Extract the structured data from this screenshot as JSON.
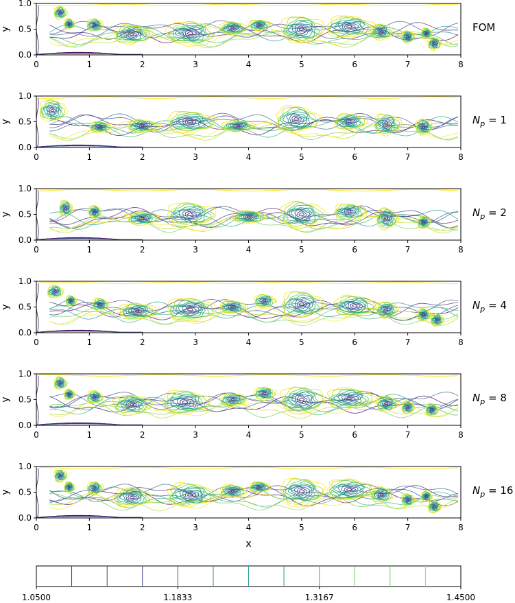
{
  "chart_data": [
    {
      "type": "contour",
      "label": "FOM",
      "xlabel": "",
      "ylabel": "y",
      "xlim": [
        0,
        8
      ],
      "ylim": [
        0,
        1
      ],
      "xticks": [
        "0",
        "1",
        "2",
        "3",
        "4",
        "5",
        "6",
        "7",
        "8"
      ],
      "yticks": [
        "0.0",
        "0.5",
        "1.0"
      ],
      "vortices": [
        {
          "x": 0.45,
          "y": 0.82,
          "r": 0.12,
          "ry": 0.12
        },
        {
          "x": 0.62,
          "y": 0.6,
          "r": 0.1,
          "ry": 0.1
        },
        {
          "x": 1.1,
          "y": 0.58,
          "r": 0.15,
          "ry": 0.12
        },
        {
          "x": 1.8,
          "y": 0.4,
          "r": 0.35,
          "ry": 0.18
        },
        {
          "x": 2.9,
          "y": 0.42,
          "r": 0.45,
          "ry": 0.22
        },
        {
          "x": 3.7,
          "y": 0.52,
          "r": 0.25,
          "ry": 0.12
        },
        {
          "x": 4.2,
          "y": 0.58,
          "r": 0.2,
          "ry": 0.1
        },
        {
          "x": 5.0,
          "y": 0.5,
          "r": 0.4,
          "ry": 0.25
        },
        {
          "x": 5.9,
          "y": 0.55,
          "r": 0.45,
          "ry": 0.2
        },
        {
          "x": 6.5,
          "y": 0.45,
          "r": 0.2,
          "ry": 0.15
        },
        {
          "x": 7.0,
          "y": 0.35,
          "r": 0.12,
          "ry": 0.12
        },
        {
          "x": 7.35,
          "y": 0.42,
          "r": 0.1,
          "ry": 0.1
        },
        {
          "x": 7.5,
          "y": 0.22,
          "r": 0.12,
          "ry": 0.12
        }
      ]
    },
    {
      "type": "contour",
      "label": "N_p = 1",
      "xlabel": "",
      "ylabel": "y",
      "xlim": [
        0,
        8
      ],
      "ylim": [
        0,
        1
      ],
      "xticks": [
        "0",
        "1",
        "2",
        "3",
        "4",
        "5",
        "6",
        "7",
        "8"
      ],
      "yticks": [
        "0.0",
        "0.5",
        "1.0"
      ],
      "vortices": [
        {
          "x": 0.3,
          "y": 0.72,
          "r": 0.25,
          "ry": 0.2
        },
        {
          "x": 1.2,
          "y": 0.4,
          "r": 0.2,
          "ry": 0.1
        },
        {
          "x": 2.0,
          "y": 0.42,
          "r": 0.3,
          "ry": 0.12
        },
        {
          "x": 2.9,
          "y": 0.5,
          "r": 0.45,
          "ry": 0.2
        },
        {
          "x": 3.8,
          "y": 0.42,
          "r": 0.3,
          "ry": 0.1
        },
        {
          "x": 4.9,
          "y": 0.55,
          "r": 0.4,
          "ry": 0.25
        },
        {
          "x": 5.9,
          "y": 0.5,
          "r": 0.3,
          "ry": 0.15
        },
        {
          "x": 6.6,
          "y": 0.45,
          "r": 0.25,
          "ry": 0.2
        },
        {
          "x": 7.3,
          "y": 0.4,
          "r": 0.15,
          "ry": 0.15
        }
      ]
    },
    {
      "type": "contour",
      "label": "N_p = 2",
      "xlabel": "",
      "ylabel": "y",
      "xlim": [
        0,
        8
      ],
      "ylim": [
        0,
        1
      ],
      "xticks": [
        "0",
        "1",
        "2",
        "3",
        "4",
        "5",
        "6",
        "7",
        "8"
      ],
      "yticks": [
        "0.0",
        "0.5",
        "1.0"
      ],
      "vortices": [
        {
          "x": 0.55,
          "y": 0.62,
          "r": 0.12,
          "ry": 0.15
        },
        {
          "x": 1.1,
          "y": 0.55,
          "r": 0.12,
          "ry": 0.12
        },
        {
          "x": 2.0,
          "y": 0.42,
          "r": 0.3,
          "ry": 0.12
        },
        {
          "x": 2.9,
          "y": 0.5,
          "r": 0.45,
          "ry": 0.22
        },
        {
          "x": 4.0,
          "y": 0.45,
          "r": 0.3,
          "ry": 0.12
        },
        {
          "x": 5.0,
          "y": 0.5,
          "r": 0.4,
          "ry": 0.25
        },
        {
          "x": 5.9,
          "y": 0.55,
          "r": 0.3,
          "ry": 0.15
        },
        {
          "x": 6.6,
          "y": 0.42,
          "r": 0.2,
          "ry": 0.2
        },
        {
          "x": 7.3,
          "y": 0.35,
          "r": 0.12,
          "ry": 0.12
        }
      ]
    },
    {
      "type": "contour",
      "label": "N_p = 4",
      "xlabel": "",
      "ylabel": "y",
      "xlim": [
        0,
        8
      ],
      "ylim": [
        0,
        1
      ],
      "xticks": [
        "0",
        "1",
        "2",
        "3",
        "4",
        "5",
        "6",
        "7",
        "8"
      ],
      "yticks": [
        "0.0",
        "0.5",
        "1.0"
      ],
      "vortices": [
        {
          "x": 0.35,
          "y": 0.8,
          "r": 0.15,
          "ry": 0.12
        },
        {
          "x": 0.65,
          "y": 0.62,
          "r": 0.1,
          "ry": 0.1
        },
        {
          "x": 1.2,
          "y": 0.55,
          "r": 0.15,
          "ry": 0.12
        },
        {
          "x": 1.9,
          "y": 0.42,
          "r": 0.35,
          "ry": 0.15
        },
        {
          "x": 2.9,
          "y": 0.45,
          "r": 0.45,
          "ry": 0.22
        },
        {
          "x": 3.7,
          "y": 0.5,
          "r": 0.25,
          "ry": 0.12
        },
        {
          "x": 4.3,
          "y": 0.62,
          "r": 0.2,
          "ry": 0.12
        },
        {
          "x": 5.0,
          "y": 0.55,
          "r": 0.4,
          "ry": 0.25
        },
        {
          "x": 6.0,
          "y": 0.52,
          "r": 0.4,
          "ry": 0.2
        },
        {
          "x": 6.6,
          "y": 0.45,
          "r": 0.2,
          "ry": 0.15
        },
        {
          "x": 7.3,
          "y": 0.35,
          "r": 0.12,
          "ry": 0.12
        },
        {
          "x": 7.55,
          "y": 0.25,
          "r": 0.12,
          "ry": 0.12
        }
      ]
    },
    {
      "type": "contour",
      "label": "N_p = 8",
      "xlabel": "",
      "ylabel": "y",
      "xlim": [
        0,
        8
      ],
      "ylim": [
        0,
        1
      ],
      "xticks": [
        "0",
        "1",
        "2",
        "3",
        "4",
        "5",
        "6",
        "7",
        "8"
      ],
      "yticks": [
        "0.0",
        "0.5",
        "1.0"
      ],
      "vortices": [
        {
          "x": 0.45,
          "y": 0.82,
          "r": 0.12,
          "ry": 0.12
        },
        {
          "x": 0.62,
          "y": 0.6,
          "r": 0.1,
          "ry": 0.1
        },
        {
          "x": 1.1,
          "y": 0.55,
          "r": 0.15,
          "ry": 0.12
        },
        {
          "x": 1.8,
          "y": 0.4,
          "r": 0.35,
          "ry": 0.18
        },
        {
          "x": 2.8,
          "y": 0.45,
          "r": 0.45,
          "ry": 0.22
        },
        {
          "x": 3.7,
          "y": 0.5,
          "r": 0.25,
          "ry": 0.12
        },
        {
          "x": 4.3,
          "y": 0.62,
          "r": 0.2,
          "ry": 0.12
        },
        {
          "x": 5.0,
          "y": 0.5,
          "r": 0.4,
          "ry": 0.25
        },
        {
          "x": 5.9,
          "y": 0.52,
          "r": 0.45,
          "ry": 0.2
        },
        {
          "x": 6.6,
          "y": 0.42,
          "r": 0.2,
          "ry": 0.15
        },
        {
          "x": 7.0,
          "y": 0.35,
          "r": 0.12,
          "ry": 0.12
        },
        {
          "x": 7.45,
          "y": 0.3,
          "r": 0.12,
          "ry": 0.12
        }
      ]
    },
    {
      "type": "contour",
      "label": "N_p = 16",
      "xlabel": "x",
      "ylabel": "y",
      "xlim": [
        0,
        8
      ],
      "ylim": [
        0,
        1
      ],
      "xticks": [
        "0",
        "1",
        "2",
        "3",
        "4",
        "5",
        "6",
        "7",
        "8"
      ],
      "yticks": [
        "0.0",
        "0.5",
        "1.0"
      ],
      "vortices": [
        {
          "x": 0.45,
          "y": 0.82,
          "r": 0.12,
          "ry": 0.12
        },
        {
          "x": 0.62,
          "y": 0.6,
          "r": 0.1,
          "ry": 0.1
        },
        {
          "x": 1.1,
          "y": 0.58,
          "r": 0.15,
          "ry": 0.12
        },
        {
          "x": 1.8,
          "y": 0.4,
          "r": 0.35,
          "ry": 0.18
        },
        {
          "x": 2.9,
          "y": 0.45,
          "r": 0.45,
          "ry": 0.22
        },
        {
          "x": 3.7,
          "y": 0.52,
          "r": 0.25,
          "ry": 0.12
        },
        {
          "x": 4.2,
          "y": 0.6,
          "r": 0.2,
          "ry": 0.1
        },
        {
          "x": 5.0,
          "y": 0.52,
          "r": 0.4,
          "ry": 0.25
        },
        {
          "x": 5.9,
          "y": 0.55,
          "r": 0.45,
          "ry": 0.2
        },
        {
          "x": 6.5,
          "y": 0.45,
          "r": 0.2,
          "ry": 0.15
        },
        {
          "x": 7.0,
          "y": 0.35,
          "r": 0.12,
          "ry": 0.12
        },
        {
          "x": 7.35,
          "y": 0.42,
          "r": 0.1,
          "ry": 0.1
        },
        {
          "x": 7.5,
          "y": 0.22,
          "r": 0.12,
          "ry": 0.12
        }
      ]
    }
  ],
  "colorbar": {
    "min": 1.05,
    "max": 1.45,
    "levels": [
      1.0833,
      1.1167,
      1.15,
      1.1833,
      1.2167,
      1.25,
      1.2833,
      1.3167,
      1.35,
      1.3833,
      1.4167
    ],
    "ticks": [
      {
        "value": 1.05,
        "label": "1.0500"
      },
      {
        "value": 1.1833,
        "label": "1.1833"
      },
      {
        "value": 1.3167,
        "label": "1.3167"
      },
      {
        "value": 1.45,
        "label": "1.4500"
      }
    ],
    "palette": [
      "#440154",
      "#482878",
      "#3e4989",
      "#31688e",
      "#26828e",
      "#1f9e89",
      "#35b779",
      "#6ece58",
      "#b5de2b",
      "#fde725"
    ]
  }
}
